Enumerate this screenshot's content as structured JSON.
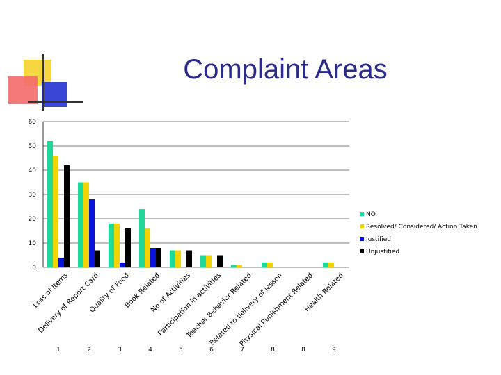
{
  "chart_data": {
    "type": "bar",
    "title": "Complaint Areas",
    "categories": [
      "Loss of Items",
      "Delivery of Report Card",
      "Quality of Food",
      "Book Related",
      "No of Activities",
      "Participation in activities",
      "Teacher Behavior Related",
      "Related to delivery of lesson",
      "Physical Punishment Related",
      "Health Related"
    ],
    "category_numbers": [
      "1",
      "2",
      "3",
      "4",
      "5",
      "6",
      "7",
      "8",
      "8",
      "9"
    ],
    "series": [
      {
        "name": "NO",
        "color": "#1ed99a",
        "values": [
          52,
          35,
          18,
          24,
          7,
          5,
          1,
          2,
          0,
          2
        ]
      },
      {
        "name": "Resolved/ Considered/ Action Taken",
        "color": "#f2d400",
        "values": [
          46,
          35,
          18,
          16,
          7,
          5,
          1,
          2,
          0,
          2
        ]
      },
      {
        "name": "Justified",
        "color": "#0a14d6",
        "values": [
          4,
          28,
          2,
          8,
          0,
          0,
          0,
          0,
          0,
          0
        ]
      },
      {
        "name": "Unjustified",
        "color": "#000000",
        "values": [
          42,
          7,
          16,
          8,
          7,
          5,
          0,
          0,
          0,
          0
        ]
      }
    ],
    "yticks": [
      0,
      10,
      20,
      30,
      40,
      50,
      60
    ],
    "ylim": [
      0,
      60
    ],
    "grid": true,
    "legend": "right"
  }
}
